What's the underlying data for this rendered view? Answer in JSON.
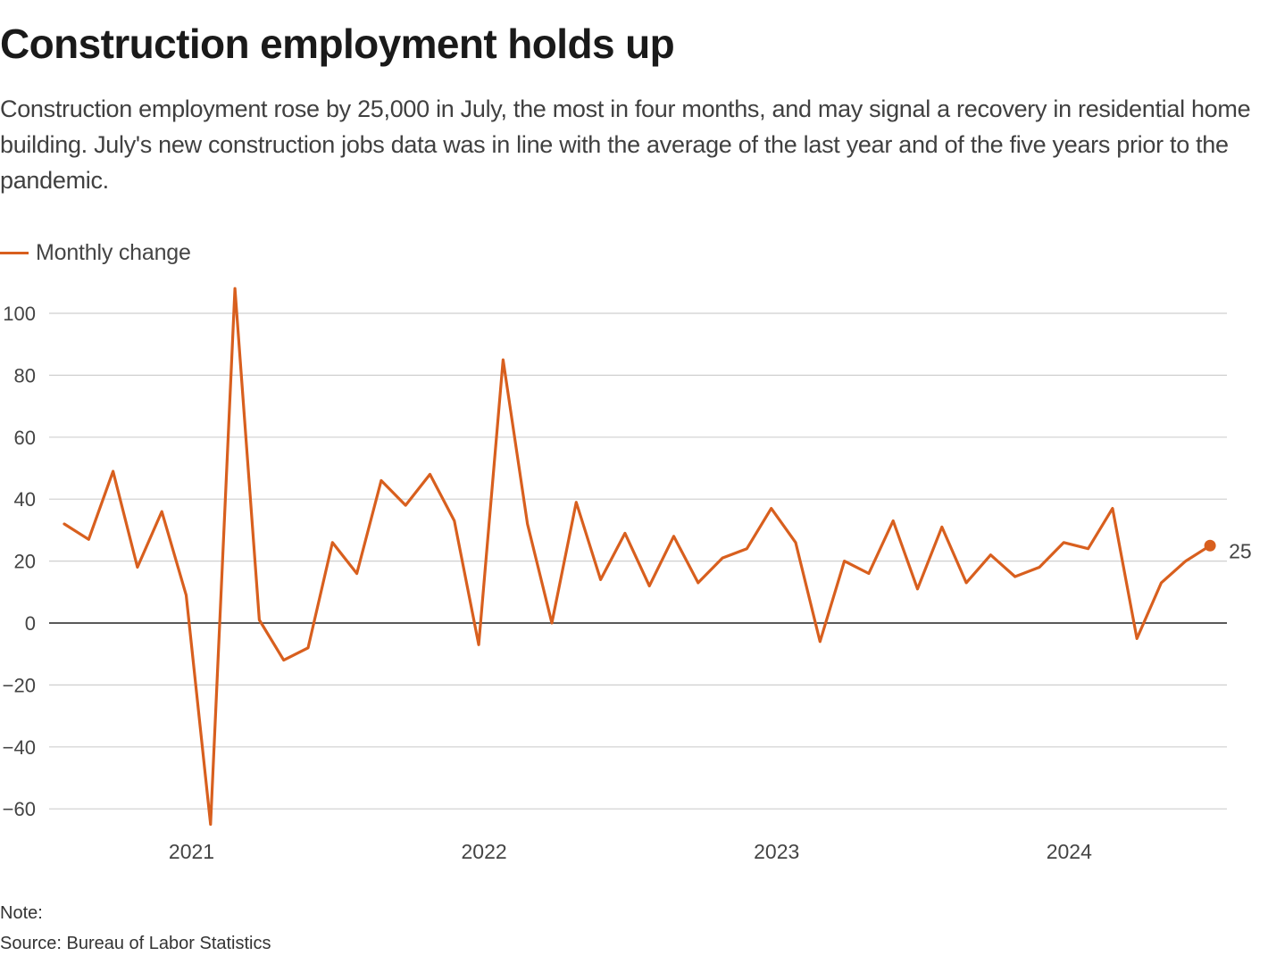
{
  "header": {
    "title": "Construction employment holds up",
    "subtitle": "Construction employment rose by 25,000 in July, the most in four months, and may signal a recovery in residential home building. July's new construction jobs data was in line with the average of the last year and of the five years prior to the pandemic."
  },
  "legend": {
    "label": "Monthly change"
  },
  "footer": {
    "note": "Note:",
    "source_prefix": "Source: ",
    "source": "Bureau of Labor Statistics"
  },
  "colors": {
    "line": "#d85f1e",
    "grid": "#cfcfcf",
    "zero_line": "#222222",
    "tick_text": "#444444"
  },
  "chart_data": {
    "type": "line",
    "series": [
      {
        "name": "Monthly change",
        "x": [
          "2020-08",
          "2020-09",
          "2020-10",
          "2020-11",
          "2020-12",
          "2021-01",
          "2021-02",
          "2021-03",
          "2021-04",
          "2021-05",
          "2021-06",
          "2021-07",
          "2021-08",
          "2021-09",
          "2021-10",
          "2021-11",
          "2021-12",
          "2022-01",
          "2022-02",
          "2022-03",
          "2022-04",
          "2022-05",
          "2022-06",
          "2022-07",
          "2022-08",
          "2022-09",
          "2022-10",
          "2022-11",
          "2022-12",
          "2023-01",
          "2023-02",
          "2023-03",
          "2023-04",
          "2023-05",
          "2023-06",
          "2023-07",
          "2023-08",
          "2023-09",
          "2023-10",
          "2023-11",
          "2023-12",
          "2024-01",
          "2024-02",
          "2024-03",
          "2024-04",
          "2024-05",
          "2024-06",
          "2024-07"
        ],
        "values": [
          32,
          27,
          49,
          18,
          36,
          9,
          -65,
          108,
          1,
          -12,
          -8,
          26,
          16,
          46,
          38,
          48,
          33,
          -7,
          85,
          32,
          0,
          39,
          14,
          29,
          12,
          28,
          13,
          21,
          24,
          37,
          26,
          -6,
          20,
          16,
          33,
          11,
          31,
          13,
          22,
          15,
          18,
          26,
          24,
          37,
          -5,
          13,
          20,
          25
        ]
      }
    ],
    "end_label": "25",
    "x_ticks": [
      "2021",
      "2022",
      "2023",
      "2024"
    ],
    "y_ticks": [
      100,
      80,
      60,
      40,
      20,
      0,
      -20,
      -40,
      -60
    ],
    "ylim": [
      -65,
      108
    ],
    "grid": true,
    "legend_position": "top-left"
  }
}
